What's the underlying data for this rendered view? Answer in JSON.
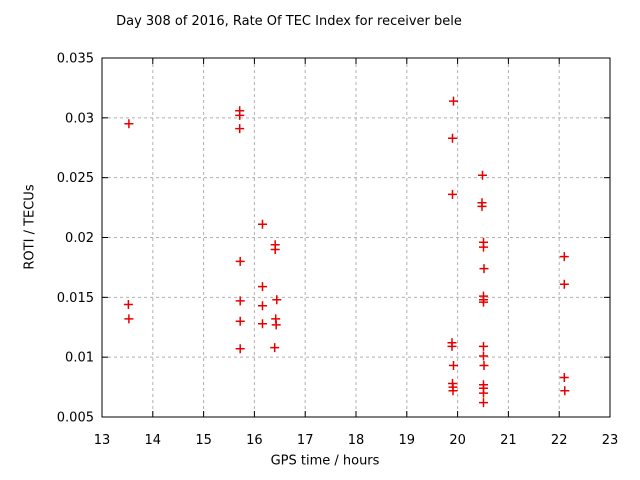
{
  "chart_data": {
    "type": "scatter",
    "title": "Day 308 of 2016, Rate Of TEC Index for receiver bele",
    "xlabel": "GPS time / hours",
    "ylabel": "ROTI / TECUs",
    "xlim": [
      13,
      23
    ],
    "ylim": [
      0.005,
      0.035
    ],
    "xticks": [
      13,
      14,
      15,
      16,
      17,
      18,
      19,
      20,
      21,
      22,
      23
    ],
    "xtick_labels": [
      "13",
      "14",
      "15",
      "16",
      "17",
      "18",
      "19",
      "20",
      "21",
      "22",
      "23"
    ],
    "yticks": [
      0.005,
      0.01,
      0.015,
      0.02,
      0.025,
      0.03,
      0.035
    ],
    "ytick_labels": [
      "0.005",
      "0.01",
      "0.015",
      "0.02",
      "0.025",
      "0.03",
      "0.035"
    ],
    "grid": true,
    "legend": "none",
    "marker": {
      "shape": "plus",
      "size": 9,
      "color": "#e60000"
    },
    "colors": {
      "marker": "#e60000",
      "grid": "#b0b0b0",
      "axis": "#000000",
      "text": "#000000"
    },
    "series": [
      {
        "name": "ROTI",
        "points": [
          [
            13.53,
            0.0295
          ],
          [
            13.52,
            0.0144
          ],
          [
            13.53,
            0.0132
          ],
          [
            15.71,
            0.0306
          ],
          [
            15.71,
            0.0302
          ],
          [
            15.71,
            0.0291
          ],
          [
            15.72,
            0.018
          ],
          [
            15.72,
            0.0147
          ],
          [
            15.72,
            0.013
          ],
          [
            15.72,
            0.0107
          ],
          [
            16.16,
            0.0211
          ],
          [
            16.16,
            0.0159
          ],
          [
            16.16,
            0.0143
          ],
          [
            16.16,
            0.0128
          ],
          [
            16.41,
            0.0194
          ],
          [
            16.41,
            0.019
          ],
          [
            16.44,
            0.0148
          ],
          [
            16.42,
            0.0132
          ],
          [
            16.43,
            0.0127
          ],
          [
            16.4,
            0.0108
          ],
          [
            19.92,
            0.0314
          ],
          [
            19.9,
            0.0283
          ],
          [
            19.9,
            0.0236
          ],
          [
            19.89,
            0.0112
          ],
          [
            19.89,
            0.0109
          ],
          [
            19.92,
            0.0093
          ],
          [
            19.9,
            0.0078
          ],
          [
            19.91,
            0.0075
          ],
          [
            19.91,
            0.0072
          ],
          [
            20.49,
            0.0252
          ],
          [
            20.48,
            0.0229
          ],
          [
            20.48,
            0.0226
          ],
          [
            20.51,
            0.0196
          ],
          [
            20.51,
            0.0192
          ],
          [
            20.52,
            0.0174
          ],
          [
            20.51,
            0.0151
          ],
          [
            20.51,
            0.0148
          ],
          [
            20.51,
            0.0146
          ],
          [
            20.51,
            0.0109
          ],
          [
            20.51,
            0.0101
          ],
          [
            20.52,
            0.0093
          ],
          [
            20.51,
            0.0077
          ],
          [
            20.51,
            0.0074
          ],
          [
            20.51,
            0.007
          ],
          [
            20.51,
            0.0062
          ],
          [
            22.1,
            0.0184
          ],
          [
            22.1,
            0.0161
          ],
          [
            22.1,
            0.0083
          ],
          [
            22.11,
            0.0072
          ]
        ]
      }
    ]
  }
}
